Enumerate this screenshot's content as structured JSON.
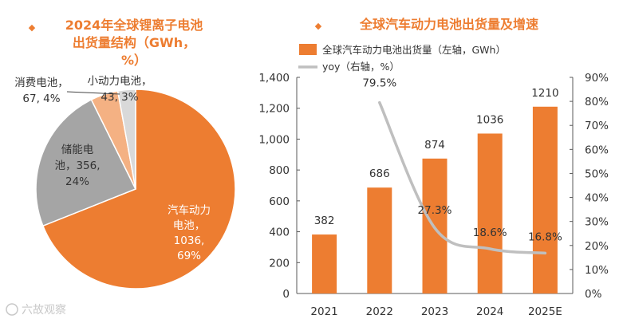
{
  "colors": {
    "accent": "#ED7D31",
    "title": "#ED7D31",
    "pie_ev": "#ED7D31",
    "pie_storage": "#A5A5A5",
    "pie_consumer": "#F4B183",
    "pie_small": "#D9D9D9",
    "bar": "#ED7D31",
    "yoy_line": "#BFBFBF",
    "text": "#333333",
    "axis": "#595959"
  },
  "watermark": "六故观察",
  "chart_data": [
    {
      "type": "pie",
      "title_lines": [
        "2024年全球锂离子电池",
        "出货量结构（GWh，",
        "%）"
      ],
      "bullet": "◆",
      "unit": "GWh",
      "slices": [
        {
          "name": "汽车动力电池",
          "value": 1036,
          "percent": "69%",
          "label_lines": [
            "汽车动力",
            "电池，",
            "1036,",
            "69%"
          ]
        },
        {
          "name": "储能电池",
          "value": 356,
          "percent": "24%",
          "label_lines": [
            "储能电",
            "池，356,",
            "24%"
          ]
        },
        {
          "name": "消费电池",
          "value": 67,
          "percent": "4%",
          "label_lines": [
            "消费电池，",
            "67, 4%"
          ]
        },
        {
          "name": "小动力电池",
          "value": 43,
          "percent": "3%",
          "label_lines": [
            "小动力电池，",
            "43, 3%"
          ]
        }
      ]
    },
    {
      "type": "bar",
      "title": "全球汽车动力电池出货量及增速",
      "bullet": "◆",
      "categories": [
        "2021",
        "2022",
        "2023",
        "2024",
        "2025E"
      ],
      "series": [
        {
          "name": "全球汽车动力电池出货量（左轴，GWh）",
          "kind": "bar",
          "axis": "left",
          "values": [
            382,
            686,
            874,
            1036,
            1210
          ],
          "labels": [
            "382",
            "686",
            "874",
            "1036",
            "1210"
          ]
        },
        {
          "name": "yoy（右轴，%）",
          "kind": "line",
          "axis": "right",
          "values": [
            null,
            79.5,
            27.3,
            18.6,
            16.8
          ],
          "labels": [
            "",
            "79.5%",
            "27.3%",
            "18.6%",
            "16.8%"
          ]
        }
      ],
      "y_left": {
        "min": 0,
        "max": 1400,
        "step": 200,
        "tick_labels": [
          "0",
          "200",
          "400",
          "600",
          "800",
          "1,000",
          "1,200",
          "1,400"
        ]
      },
      "y_right": {
        "min": 0,
        "max": 90,
        "step": 10,
        "tick_labels": [
          "0%",
          "10%",
          "20%",
          "30%",
          "40%",
          "50%",
          "60%",
          "70%",
          "80%",
          "90%"
        ]
      },
      "grid": false,
      "legend_position": "top-left"
    }
  ]
}
